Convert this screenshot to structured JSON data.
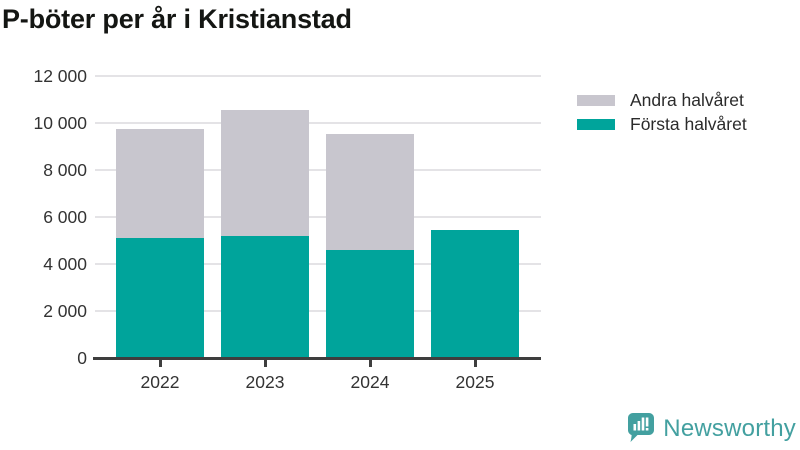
{
  "title": "P-böter per år i Kristianstad",
  "chart_data": {
    "type": "bar",
    "stacked": true,
    "title": "P-böter per år i Kristianstad",
    "categories": [
      "2022",
      "2023",
      "2024",
      "2025"
    ],
    "series": [
      {
        "name": "Första halvåret",
        "color": "#00a49b",
        "values": [
          5100,
          5200,
          4600,
          5450
        ]
      },
      {
        "name": "Andra halvåret",
        "color": "#c8c6ce",
        "values": [
          4650,
          5350,
          4950,
          null
        ]
      }
    ],
    "totals": [
      9750,
      10550,
      9550,
      5450
    ],
    "xlabel": "",
    "ylabel": "",
    "ylim": [
      0,
      12000
    ],
    "yticks": [
      0,
      2000,
      4000,
      6000,
      8000,
      10000,
      12000
    ],
    "ytick_labels": [
      "0",
      "2 000",
      "4 000",
      "6 000",
      "8 000",
      "10 000",
      "12 000"
    ],
    "grid": true,
    "legend_position": "top-right"
  },
  "legend": {
    "items": [
      {
        "label": "Andra halvåret",
        "color": "#c8c6ce"
      },
      {
        "label": "Första halvåret",
        "color": "#00a49b"
      }
    ]
  },
  "footer": {
    "brand": "Newsworthy"
  },
  "colors": {
    "first_half": "#00a49b",
    "second_half": "#c8c6ce",
    "axis": "#3e3e3e",
    "grid": "#e4e3e6",
    "tick_text": "#333333",
    "title_text": "#141613",
    "brand": "#43a0a0"
  }
}
